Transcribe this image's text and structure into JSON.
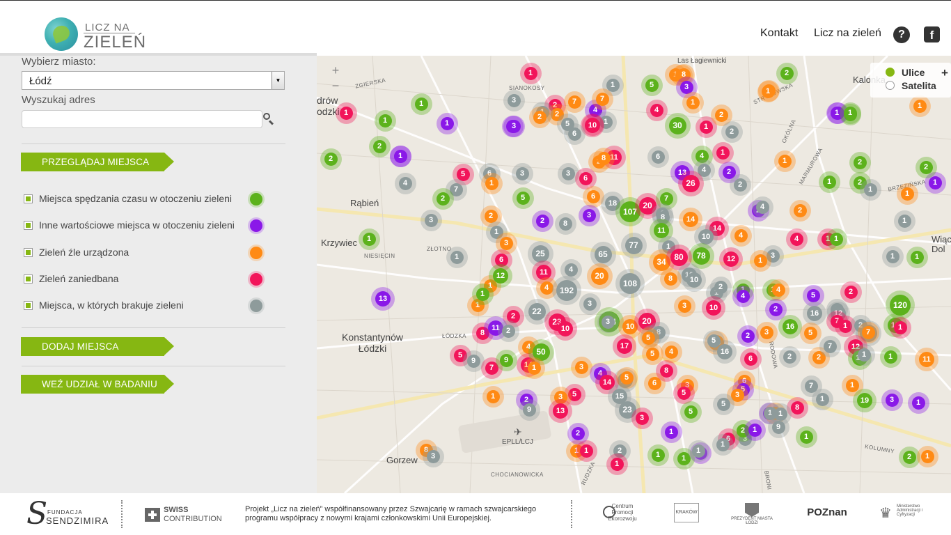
{
  "header": {
    "logo_line1": "LICZ NA",
    "logo_line2": "ZIELEŃ",
    "nav": [
      {
        "label": "Kontakt"
      },
      {
        "label": "Licz na zieleń"
      }
    ],
    "help_icon": "help-icon",
    "facebook_icon": "facebook-icon",
    "help_glyph": "?",
    "facebook_glyph": "f"
  },
  "sidebar": {
    "city_label": "Wybierz miasto:",
    "city_value": "Łódź",
    "address_label": "Wyszukaj adres",
    "address_value": "",
    "browse_button": "PRZEGLĄDAJ MIEJSCA",
    "layers": [
      {
        "label": "Miejsca spędzania czasu w otoczeniu zieleni",
        "color": "#5cb21c"
      },
      {
        "label": "Inne wartościowe miejsca w otoczeniu zieleni",
        "color": "#8a18e8"
      },
      {
        "label": "Zieleń źle urządzona",
        "color": "#ff8a14"
      },
      {
        "label": "Zieleń zaniedbana",
        "color": "#f2145a"
      },
      {
        "label": "Miejsca, w których brakuje zieleni",
        "color": "#8e9b9b"
      }
    ],
    "add_button": "DODAJ MIEJSCA",
    "survey_button": "WEŹ UDZIAŁ W BADANIU"
  },
  "map": {
    "zoom_in": "+",
    "zoom_out": "−",
    "layer_switch": {
      "streets": "Ulice",
      "satellite": "Satelita",
      "selected": "Ulice",
      "expand": "+"
    },
    "place_labels": [
      "Las Łagiewnicki",
      "Kalonka",
      "Rąbień",
      "Krzywiec",
      "Konstantynów Łódzki",
      "Gorzew",
      "EPLL/LCJ",
      "Wiąc Dol",
      "drów odzki"
    ],
    "street_labels": [
      "ZGIERSKA",
      "SIANOKOSY",
      "STRYKOWSKA",
      "OKÓLNA",
      "MARMUROWA",
      "BRZEZIŃSKA",
      "ZŁOTNO",
      "NIESIĘCIN",
      "ŁÓDZKA",
      "RODOWA",
      "KOLUMNY",
      "CHOCIANOWICKA",
      "RUDZKA",
      "BRONI"
    ],
    "markers": [
      {
        "n": "1",
        "c": "r"
      },
      {
        "n": "1",
        "c": "g"
      },
      {
        "n": "1",
        "c": "g"
      },
      {
        "n": "1",
        "c": "p"
      },
      {
        "n": "2",
        "c": "g"
      },
      {
        "n": "1",
        "c": "r"
      },
      {
        "n": "3",
        "c": "y"
      },
      {
        "n": "1",
        "c": "y"
      },
      {
        "n": "1",
        "c": "p"
      },
      {
        "n": "2",
        "c": "r"
      },
      {
        "n": "2",
        "c": "o"
      },
      {
        "n": "4",
        "c": "p"
      },
      {
        "n": "1",
        "c": "y"
      },
      {
        "n": "7",
        "c": "o"
      },
      {
        "n": "1",
        "c": "r"
      },
      {
        "n": "5",
        "c": "y"
      },
      {
        "n": "10",
        "c": "r"
      },
      {
        "n": "5",
        "c": "g"
      },
      {
        "n": "1",
        "c": "o"
      },
      {
        "n": "1",
        "c": "o"
      },
      {
        "n": "8",
        "c": "o"
      },
      {
        "n": "3",
        "c": "p"
      },
      {
        "n": "1",
        "c": "o"
      },
      {
        "n": "4",
        "c": "r"
      },
      {
        "n": "30",
        "c": "g"
      },
      {
        "n": "1",
        "c": "r"
      },
      {
        "n": "2",
        "c": "o"
      },
      {
        "n": "2",
        "c": "y"
      },
      {
        "n": "2",
        "c": "g"
      },
      {
        "n": "1",
        "c": "o"
      },
      {
        "n": "1",
        "c": "o"
      },
      {
        "n": "1",
        "c": "p"
      },
      {
        "n": "1",
        "c": "g"
      },
      {
        "n": "1",
        "c": "o"
      },
      {
        "n": "3",
        "c": "p"
      },
      {
        "n": "1",
        "c": "y"
      },
      {
        "n": "6",
        "c": "y"
      },
      {
        "n": "7",
        "c": "o"
      },
      {
        "n": "2",
        "c": "o"
      },
      {
        "n": "3",
        "c": "p"
      },
      {
        "n": "2",
        "c": "o"
      },
      {
        "n": "2",
        "c": "g"
      },
      {
        "n": "1",
        "c": "p"
      },
      {
        "n": "2",
        "c": "g"
      },
      {
        "n": "1",
        "c": "p"
      },
      {
        "n": "2",
        "c": "g"
      },
      {
        "n": "1",
        "c": "p"
      },
      {
        "n": "5",
        "c": "r"
      },
      {
        "n": "6",
        "c": "y"
      },
      {
        "n": "1",
        "c": "o"
      },
      {
        "n": "3",
        "c": "y"
      },
      {
        "n": "3",
        "c": "y"
      },
      {
        "n": "6",
        "c": "r"
      },
      {
        "n": "11",
        "c": "r"
      },
      {
        "n": "8",
        "c": "o"
      },
      {
        "n": "6",
        "c": "y"
      },
      {
        "n": "1",
        "c": "r"
      },
      {
        "n": "4",
        "c": "g"
      },
      {
        "n": "13",
        "c": "p"
      },
      {
        "n": "4",
        "c": "y"
      },
      {
        "n": "26",
        "c": "r"
      },
      {
        "n": "2",
        "c": "p"
      },
      {
        "n": "2",
        "c": "y"
      },
      {
        "n": "1",
        "c": "o"
      },
      {
        "n": "1",
        "c": "g"
      },
      {
        "n": "2",
        "c": "g"
      },
      {
        "n": "1",
        "c": "y"
      },
      {
        "n": "1",
        "c": "o"
      },
      {
        "n": "7",
        "c": "y"
      },
      {
        "n": "2",
        "c": "g"
      },
      {
        "n": "5",
        "c": "g"
      },
      {
        "n": "6",
        "c": "o"
      },
      {
        "n": "18",
        "c": "y"
      },
      {
        "n": "107",
        "c": "g"
      },
      {
        "n": "20",
        "c": "r"
      },
      {
        "n": "7",
        "c": "g"
      },
      {
        "n": "6",
        "c": "y"
      },
      {
        "n": "2",
        "c": "p"
      },
      {
        "n": "4",
        "c": "y"
      },
      {
        "n": "2",
        "c": "o"
      },
      {
        "n": "1",
        "c": "y"
      },
      {
        "n": "2",
        "c": "o"
      },
      {
        "n": "2",
        "c": "p"
      },
      {
        "n": "8",
        "c": "y"
      },
      {
        "n": "3",
        "c": "p"
      },
      {
        "n": "8",
        "c": "y"
      },
      {
        "n": "14",
        "c": "o"
      },
      {
        "n": "11",
        "c": "g"
      },
      {
        "n": "14",
        "c": "r"
      },
      {
        "n": "10",
        "c": "y"
      },
      {
        "n": "4",
        "c": "o"
      },
      {
        "n": "4",
        "c": "r"
      },
      {
        "n": "1",
        "c": "r"
      },
      {
        "n": "1",
        "c": "g"
      },
      {
        "n": "1",
        "c": "y"
      },
      {
        "n": "3",
        "c": "o"
      },
      {
        "n": "1",
        "c": "g"
      },
      {
        "n": "6",
        "c": "r"
      },
      {
        "n": "25",
        "c": "y"
      },
      {
        "n": "65",
        "c": "y"
      },
      {
        "n": "77",
        "c": "y"
      },
      {
        "n": "1",
        "c": "y"
      },
      {
        "n": "78",
        "c": "g"
      },
      {
        "n": "12",
        "c": "r"
      },
      {
        "n": "3",
        "c": "y"
      },
      {
        "n": "1",
        "c": "o"
      },
      {
        "n": "1",
        "c": "y"
      },
      {
        "n": "1",
        "c": "g"
      },
      {
        "n": "1",
        "c": "o"
      },
      {
        "n": "11",
        "c": "r"
      },
      {
        "n": "12",
        "c": "g"
      },
      {
        "n": "4",
        "c": "y"
      },
      {
        "n": "20",
        "c": "o"
      },
      {
        "n": "34",
        "c": "o"
      },
      {
        "n": "80",
        "c": "r"
      },
      {
        "n": "10",
        "c": "y"
      },
      {
        "n": "1",
        "c": "y"
      },
      {
        "n": "1",
        "c": "g"
      },
      {
        "n": "1",
        "c": "g"
      },
      {
        "n": "13",
        "c": "p"
      },
      {
        "n": "4",
        "c": "o"
      },
      {
        "n": "192",
        "c": "y"
      },
      {
        "n": "108",
        "c": "y"
      },
      {
        "n": "8",
        "c": "o"
      },
      {
        "n": "10",
        "c": "y"
      },
      {
        "n": "2",
        "c": "y"
      },
      {
        "n": "4",
        "c": "o"
      },
      {
        "n": "4",
        "c": "p"
      },
      {
        "n": "5",
        "c": "p"
      },
      {
        "n": "2",
        "c": "r"
      },
      {
        "n": "120",
        "c": "g"
      },
      {
        "n": "1",
        "c": "o"
      },
      {
        "n": "22",
        "c": "y"
      },
      {
        "n": "2",
        "c": "r"
      },
      {
        "n": "3",
        "c": "y"
      },
      {
        "n": "124",
        "c": "g"
      },
      {
        "n": "10",
        "c": "o"
      },
      {
        "n": "3",
        "c": "o"
      },
      {
        "n": "10",
        "c": "r"
      },
      {
        "n": "2",
        "c": "p"
      },
      {
        "n": "16",
        "c": "y"
      },
      {
        "n": "9",
        "c": "y"
      },
      {
        "n": "12",
        "c": "y"
      },
      {
        "n": "7",
        "c": "r"
      },
      {
        "n": "1",
        "c": "r"
      },
      {
        "n": "12",
        "c": "g"
      },
      {
        "n": "2",
        "c": "y"
      },
      {
        "n": "8",
        "c": "r"
      },
      {
        "n": "11",
        "c": "p"
      },
      {
        "n": "23",
        "c": "r"
      },
      {
        "n": "10",
        "c": "r"
      },
      {
        "n": "3",
        "c": "y"
      },
      {
        "n": "20",
        "c": "r"
      },
      {
        "n": "8",
        "c": "y"
      },
      {
        "n": "2",
        "c": "p"
      },
      {
        "n": "3",
        "c": "o"
      },
      {
        "n": "16",
        "c": "g"
      },
      {
        "n": "5",
        "c": "o"
      },
      {
        "n": "36",
        "c": "y"
      },
      {
        "n": "7",
        "c": "o"
      },
      {
        "n": "7",
        "c": "y"
      },
      {
        "n": "5",
        "c": "o"
      },
      {
        "n": "17",
        "c": "r"
      },
      {
        "n": "13",
        "c": "o"
      },
      {
        "n": "16",
        "c": "y"
      },
      {
        "n": "6",
        "c": "r"
      },
      {
        "n": "2",
        "c": "y"
      },
      {
        "n": "2",
        "c": "o"
      },
      {
        "n": "7",
        "c": "y"
      },
      {
        "n": "12",
        "c": "r"
      },
      {
        "n": "11",
        "c": "g"
      },
      {
        "n": "1",
        "c": "y"
      },
      {
        "n": "1",
        "c": "g"
      },
      {
        "n": "1",
        "c": "r"
      },
      {
        "n": "11",
        "c": "o"
      },
      {
        "n": "5",
        "c": "r"
      },
      {
        "n": "9",
        "c": "y"
      },
      {
        "n": "7",
        "c": "r"
      },
      {
        "n": "9",
        "c": "g"
      },
      {
        "n": "4",
        "c": "o"
      },
      {
        "n": "14",
        "c": "r"
      },
      {
        "n": "50",
        "c": "g"
      },
      {
        "n": "13",
        "c": "y"
      },
      {
        "n": "5",
        "c": "o"
      },
      {
        "n": "4",
        "c": "o"
      },
      {
        "n": "5",
        "c": "y"
      },
      {
        "n": "3",
        "c": "o"
      },
      {
        "n": "4",
        "c": "p"
      },
      {
        "n": "14",
        "c": "r"
      },
      {
        "n": "5",
        "c": "o"
      },
      {
        "n": "6",
        "c": "o"
      },
      {
        "n": "8",
        "c": "r"
      },
      {
        "n": "3",
        "c": "o"
      },
      {
        "n": "6",
        "c": "o"
      },
      {
        "n": "5",
        "c": "p"
      },
      {
        "n": "1",
        "c": "o"
      },
      {
        "n": "7",
        "c": "y"
      },
      {
        "n": "1",
        "c": "o"
      },
      {
        "n": "5",
        "c": "r"
      },
      {
        "n": "2",
        "c": "p"
      },
      {
        "n": "3",
        "c": "o"
      },
      {
        "n": "9",
        "c": "y"
      },
      {
        "n": "13",
        "c": "r"
      },
      {
        "n": "15",
        "c": "y"
      },
      {
        "n": "23",
        "c": "y"
      },
      {
        "n": "5",
        "c": "r"
      },
      {
        "n": "3",
        "c": "o"
      },
      {
        "n": "5",
        "c": "y"
      },
      {
        "n": "1",
        "c": "p"
      },
      {
        "n": "1",
        "c": "y"
      },
      {
        "n": "19",
        "c": "g"
      },
      {
        "n": "3",
        "c": "p"
      },
      {
        "n": "1",
        "c": "p"
      },
      {
        "n": "3",
        "c": "r"
      },
      {
        "n": "5",
        "c": "g"
      },
      {
        "n": "3",
        "c": "y"
      },
      {
        "n": "6",
        "c": "r"
      },
      {
        "n": "1",
        "c": "o"
      },
      {
        "n": "2",
        "c": "p"
      },
      {
        "n": "1",
        "c": "r"
      },
      {
        "n": "2",
        "c": "y"
      },
      {
        "n": "1",
        "c": "p"
      },
      {
        "n": "1",
        "c": "p"
      },
      {
        "n": "2",
        "c": "g"
      },
      {
        "n": "1",
        "c": "y"
      },
      {
        "n": "8",
        "c": "o"
      },
      {
        "n": "3",
        "c": "y"
      },
      {
        "n": "1",
        "c": "r"
      },
      {
        "n": "1",
        "c": "g"
      },
      {
        "n": "1",
        "c": "y"
      },
      {
        "n": "1",
        "c": "g"
      },
      {
        "n": "2",
        "c": "g"
      },
      {
        "n": "1",
        "c": "o"
      },
      {
        "n": "1",
        "c": "g"
      },
      {
        "n": "2",
        "c": "o"
      },
      {
        "n": "8",
        "c": "r"
      },
      {
        "n": "9",
        "c": "y"
      },
      {
        "n": "1",
        "c": "p"
      },
      {
        "n": "1",
        "c": "y"
      },
      {
        "n": "1",
        "c": "y"
      },
      {
        "n": "2",
        "c": "g"
      },
      {
        "n": "4",
        "c": "y"
      },
      {
        "n": "3",
        "c": "y"
      },
      {
        "n": "1",
        "c": "y"
      },
      {
        "n": "1",
        "c": "g"
      },
      {
        "n": "2",
        "c": "y"
      },
      {
        "n": "1",
        "c": "o"
      }
    ]
  },
  "footer": {
    "sendzimir_top": "FUNDACJA",
    "sendzimir_name": "SENDZIMIRA",
    "sendzimir_glyph": "S",
    "swiss_top": "SWISS",
    "swiss_bottom": "CONTRIBUTION",
    "project_text": "Projekt „Licz na zieleń” współfinansowany przez Szwajcarię w ramach szwajcarskiego programu współpracy z nowymi krajami członkowskimi Unii Europejskiej.",
    "partners": [
      "Centrum Promocji Ekorozwoju",
      "KRAKÓW",
      "PREZYDENT MIASTA ŁODZI",
      "POZnan",
      "Ministerstwo Administracji i Cyfryzacji"
    ]
  },
  "colors": {
    "g": "#5cb21c",
    "p": "#8a18e8",
    "o": "#ff8a14",
    "r": "#f2145a",
    "y": "#8e9b9b",
    "accent": "#86b712"
  }
}
